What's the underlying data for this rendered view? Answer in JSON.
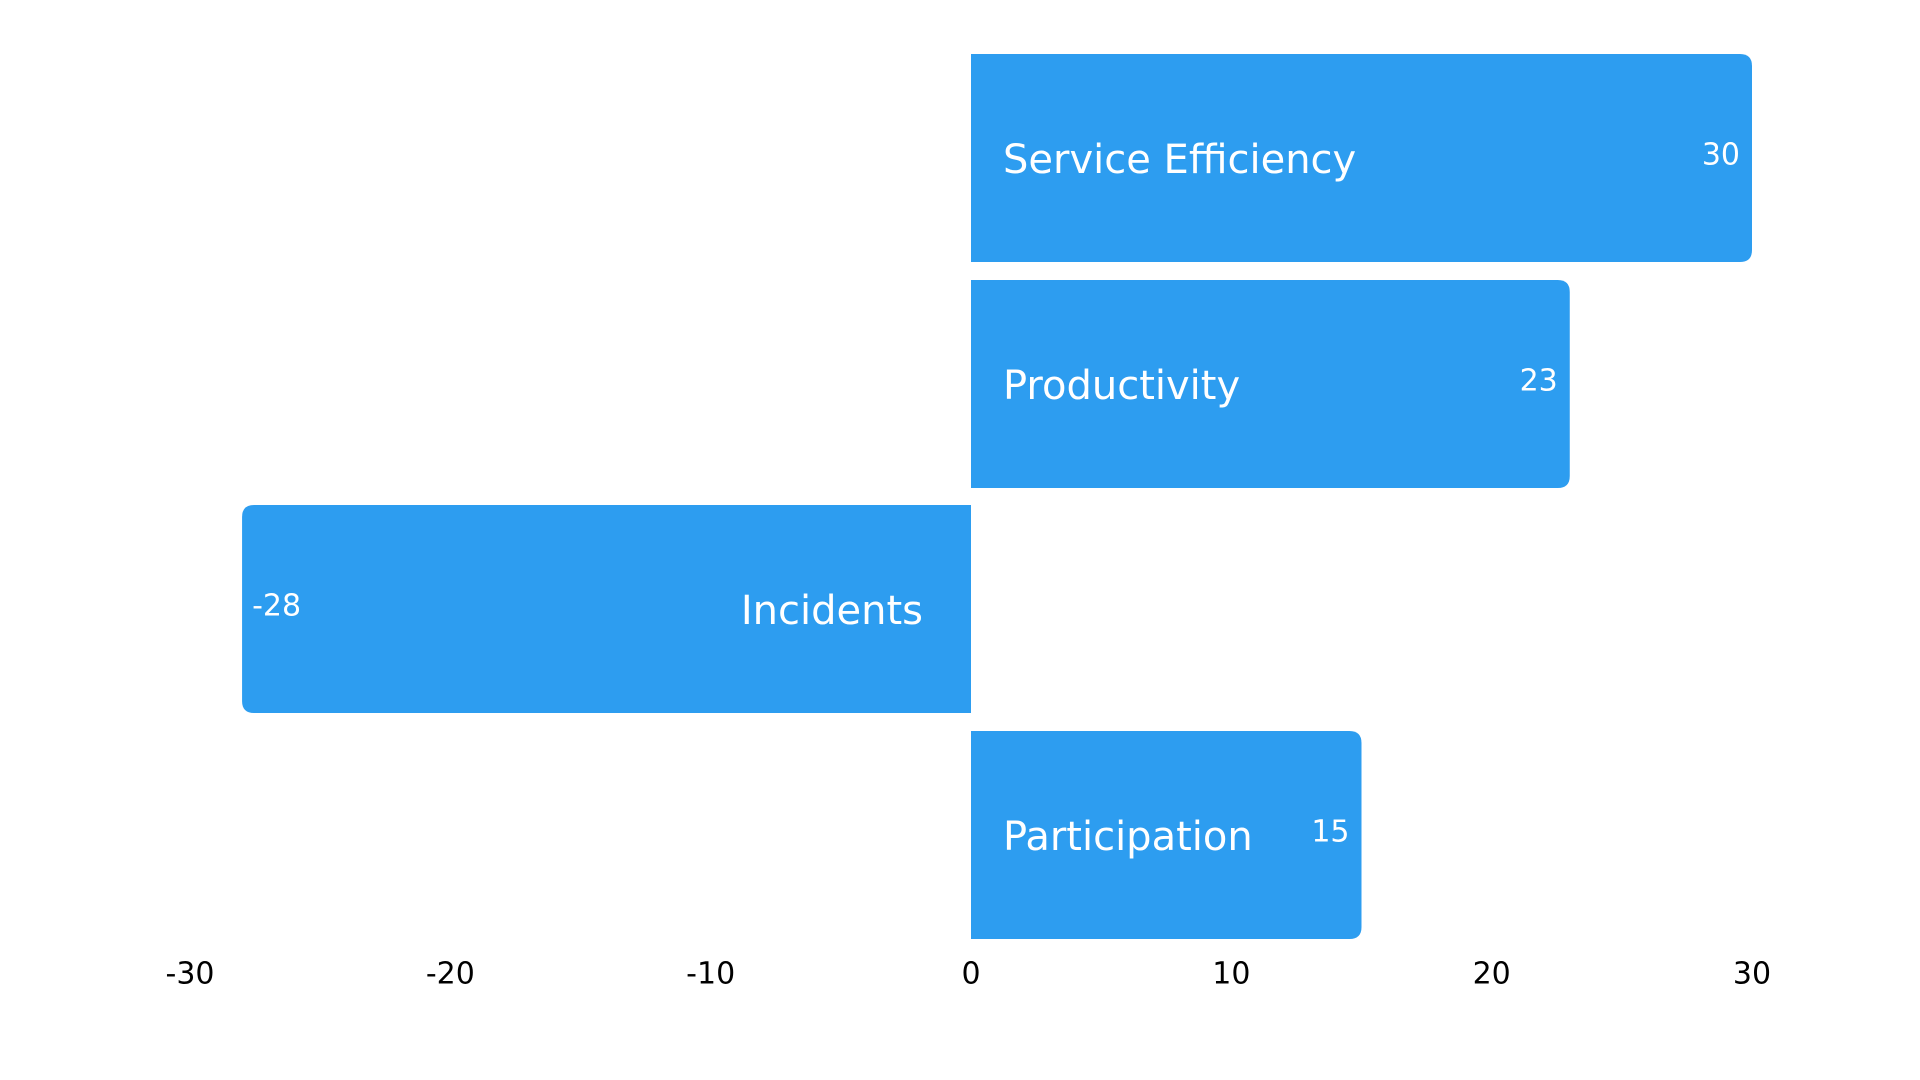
{
  "chart_data": {
    "type": "bar",
    "orientation": "horizontal",
    "categories": [
      "Service Efficiency",
      "Productivity",
      "Incidents",
      "Participation"
    ],
    "values": [
      30,
      23,
      -28,
      15
    ],
    "value_labels": [
      "30",
      "23",
      "-28",
      "15"
    ],
    "xlim": [
      -30,
      30
    ],
    "x_ticks": [
      -30,
      -20,
      -10,
      0,
      10,
      20,
      30
    ],
    "x_tick_labels": [
      "-30",
      "-20",
      "-10",
      "0",
      "10",
      "20",
      "30"
    ],
    "title": "",
    "xlabel": "",
    "ylabel": "",
    "grid": false,
    "legend": "none",
    "bar_color": "#2d9df0",
    "label_color": "#ffffff",
    "tick_color": "#000000",
    "background": "#ffffff"
  }
}
